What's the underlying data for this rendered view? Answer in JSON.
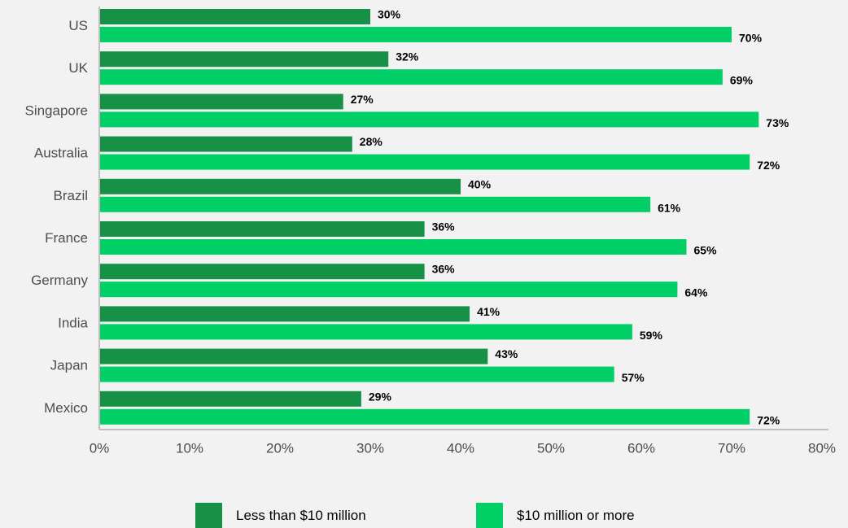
{
  "chart_data": {
    "type": "bar",
    "orientation": "horizontal",
    "categories": [
      "US",
      "UK",
      "Singapore",
      "Australia",
      "Brazil",
      "France",
      "Germany",
      "India",
      "Japan",
      "Mexico"
    ],
    "series": [
      {
        "name": "Less than $10 million",
        "color": "#169146",
        "values": [
          30,
          32,
          27,
          28,
          40,
          36,
          36,
          41,
          43,
          29
        ],
        "labels": [
          "30%",
          "32%",
          "27%",
          "28%",
          "40%",
          "36%",
          "36%",
          "41%",
          "43%",
          "29%"
        ]
      },
      {
        "name": "$10 million or more",
        "color": "#00d066",
        "values": [
          70,
          69,
          73,
          72,
          61,
          65,
          64,
          59,
          57,
          72
        ],
        "labels": [
          "70%",
          "69%",
          "73%",
          "72%",
          "61%",
          "65%",
          "64%",
          "59%",
          "57%",
          "72%"
        ]
      }
    ],
    "xlim": [
      0,
      80
    ],
    "xticks": [
      "0%",
      "10%",
      "20%",
      "30%",
      "40%",
      "50%",
      "60%",
      "70%",
      "80%"
    ],
    "grid": false,
    "legend_position": "bottom"
  }
}
